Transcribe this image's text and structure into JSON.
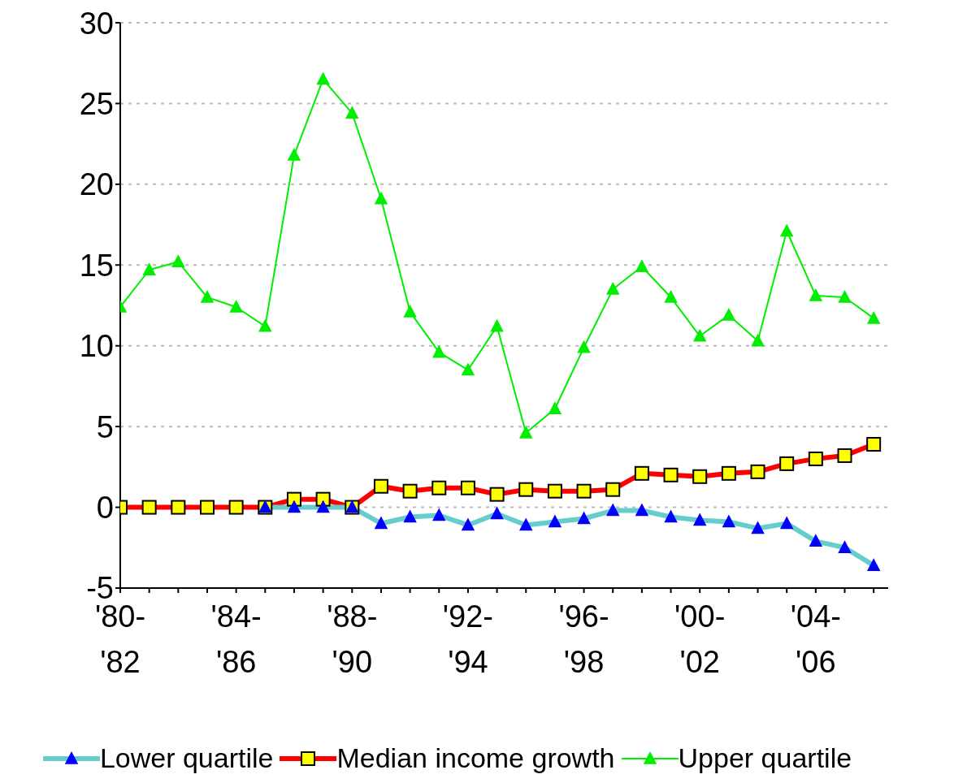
{
  "chart_data": {
    "type": "line",
    "categories": [
      "'80-'82",
      null,
      null,
      null,
      "'84-'86",
      null,
      null,
      null,
      "'88-'90",
      null,
      null,
      null,
      "'92-'94",
      null,
      null,
      null,
      "'96-'98",
      null,
      null,
      null,
      "'00-'02",
      null,
      null,
      null,
      "'04-'06",
      null,
      null
    ],
    "series": [
      {
        "name": "Lower quartile",
        "color": "#0000ff",
        "marker": "triangle",
        "values": [
          null,
          null,
          null,
          null,
          null,
          0,
          0,
          0,
          0,
          -1.0,
          -0.6,
          -0.5,
          -1.1,
          -0.4,
          -1.1,
          -0.9,
          -0.7,
          -0.2,
          -0.2,
          -0.6,
          -0.8,
          -0.9,
          -1.3,
          -1.0,
          -2.1,
          -2.5,
          -3.6
        ]
      },
      {
        "name": "Median income growth",
        "color": "#ff0000",
        "marker": "square",
        "values": [
          0,
          0,
          0,
          0,
          0,
          0,
          0.5,
          0.5,
          0,
          1.3,
          1.0,
          1.2,
          1.2,
          0.8,
          1.1,
          1.0,
          1.0,
          1.1,
          2.1,
          2.0,
          1.9,
          2.1,
          2.2,
          2.7,
          3.0,
          3.2,
          3.9
        ]
      },
      {
        "name": "Upper quartile",
        "color": "#00ee00",
        "marker": "triangle",
        "values": [
          12.4,
          14.7,
          15.2,
          13.0,
          12.4,
          11.2,
          21.8,
          26.5,
          24.4,
          19.1,
          12.1,
          9.6,
          8.5,
          11.2,
          4.6,
          6.1,
          9.9,
          13.5,
          14.9,
          13.0,
          10.6,
          11.9,
          10.3,
          17.1,
          13.1,
          13.0,
          11.7
        ]
      }
    ],
    "ylim": [
      -5,
      30
    ],
    "yticks": [
      -5,
      0,
      5,
      10,
      15,
      20,
      25,
      30
    ],
    "grid": "y",
    "legend": "bottom"
  }
}
